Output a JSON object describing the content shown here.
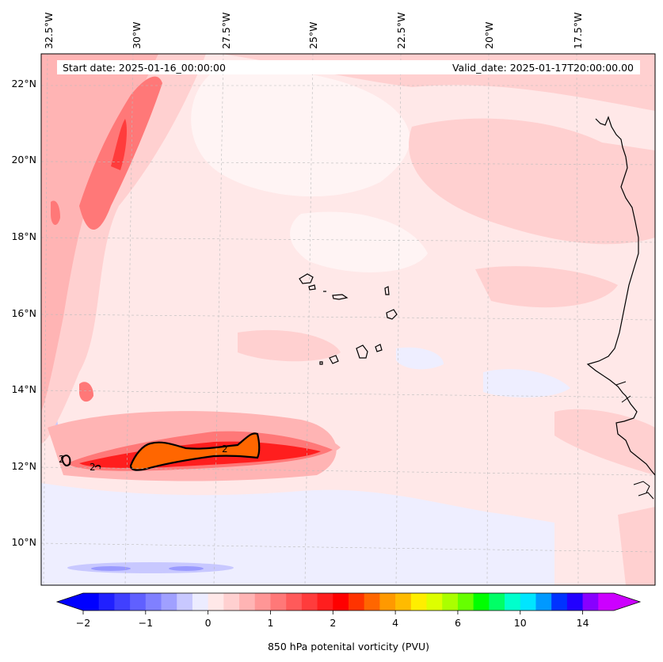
{
  "map": {
    "start_date": "Start date: 2025-01-16_00:00:00",
    "valid_date": "Valid_date: 2025-01-17T20:00:00.00",
    "lon_labels": [
      "32.5°W",
      "30°W",
      "27.5°W",
      "25°W",
      "22.5°W",
      "20°W",
      "17.5°W"
    ],
    "lat_labels": [
      "22°N",
      "20°N",
      "18°N",
      "16°N",
      "14°N",
      "12°N",
      "10°N"
    ],
    "contour_labels": [
      "2",
      "2",
      "2"
    ]
  },
  "colorbar": {
    "title": "850 hPa potenital vorticity (PVU)",
    "tick_labels": [
      "−2",
      "−1",
      "0",
      "1",
      "2",
      "4",
      "6",
      "10",
      "14"
    ],
    "colors": [
      "#0000ff",
      "#2020ff",
      "#4040ff",
      "#6060ff",
      "#8080ff",
      "#a0a0ff",
      "#c8c8ff",
      "#ececff",
      "#ffe8e8",
      "#ffd0d0",
      "#ffb4b4",
      "#ff9696",
      "#ff7878",
      "#ff5a5a",
      "#ff3c3c",
      "#ff1e1e",
      "#ff0000",
      "#ff3300",
      "#ff6600",
      "#ff9900",
      "#ffbb00",
      "#ffee00",
      "#ddff00",
      "#aaff00",
      "#66ff00",
      "#00ff00",
      "#00ff66",
      "#00ffcc",
      "#00e5ff",
      "#0099ff",
      "#0033ff",
      "#2200ff",
      "#8800ff",
      "#cc00ff"
    ],
    "min_color": "#0000ff",
    "max_color": "#cc00ff"
  }
}
